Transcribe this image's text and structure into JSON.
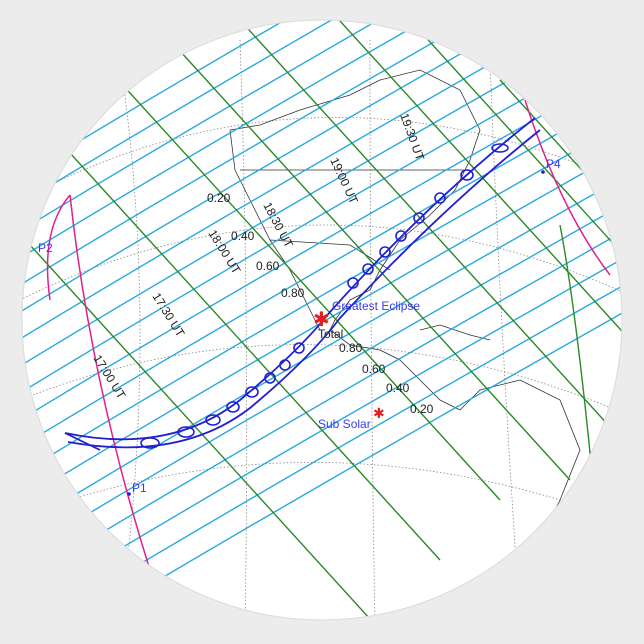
{
  "map": {
    "colors": {
      "background": "#ececec",
      "sticker": "#ffffff",
      "magnitude_lines": "#29a9e0",
      "time_lines": "#2a8a2a",
      "limit_lines": "#e0208c",
      "central_path": "#2020d0",
      "markers": "#e02020",
      "labels_blue": "#3a3af0"
    },
    "magnitude_labels": [
      "0.20",
      "0.40",
      "0.60",
      "0.80",
      "0.80",
      "0.60",
      "0.40",
      "0.20"
    ],
    "time_labels": [
      "17:00 UT",
      "17:30 UT",
      "18:00 UT",
      "18:30 UT",
      "19:00 UT",
      "19:30 UT"
    ],
    "greatest_eclipse": "Greatest Eclipse",
    "total": "Total",
    "sub_solar": "Sub Solar",
    "points": [
      "P1",
      "P2",
      "P4"
    ]
  }
}
